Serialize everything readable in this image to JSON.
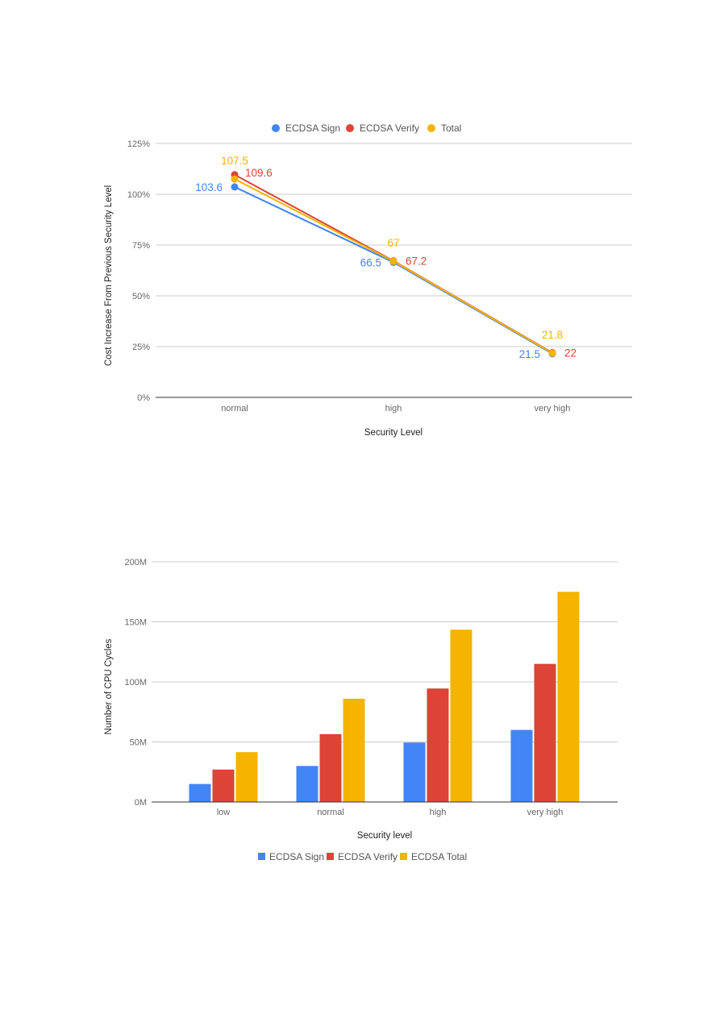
{
  "chart_data": [
    {
      "type": "line",
      "title": "",
      "xlabel": "Security Level",
      "ylabel": "Cost Increase From Previous Security Level",
      "categories": [
        "normal",
        "high",
        "very high"
      ],
      "ylim": [
        0,
        125
      ],
      "yticks": [
        "0%",
        "25%",
        "50%",
        "75%",
        "100%",
        "125%"
      ],
      "grid": true,
      "legend_position": "top",
      "series": [
        {
          "name": "ECDSA Sign",
          "color": "#4285f4",
          "values": [
            103.6,
            66.5,
            21.5
          ],
          "labels": [
            "103.6",
            "66.5",
            "21.5"
          ]
        },
        {
          "name": "ECDSA Verify",
          "color": "#db4437",
          "values": [
            109.6,
            67.2,
            22
          ],
          "labels": [
            "109.6",
            "67.2",
            "22"
          ]
        },
        {
          "name": "Total",
          "color": "#f4b400",
          "values": [
            107.5,
            67,
            21.8
          ],
          "labels": [
            "107.5",
            "67",
            "21.8"
          ]
        }
      ]
    },
    {
      "type": "bar",
      "title": "",
      "xlabel": "Security level",
      "ylabel": "Number of CPU Cycles",
      "categories": [
        "low",
        "normal",
        "high",
        "very high"
      ],
      "ylim": [
        0,
        200000000
      ],
      "yticks": [
        "0M",
        "50M",
        "100M",
        "150M",
        "200M"
      ],
      "grid": true,
      "legend_position": "bottom",
      "series": [
        {
          "name": "ECDSA Sign",
          "color": "#4285f4",
          "values": [
            15000000,
            30000000,
            49500000,
            60000000
          ]
        },
        {
          "name": "ECDSA Verify",
          "color": "#db4437",
          "values": [
            27000000,
            56500000,
            94500000,
            115000000
          ]
        },
        {
          "name": "ECDSA Total",
          "color": "#f4b400",
          "values": [
            41500000,
            86000000,
            143500000,
            175000000
          ]
        }
      ]
    }
  ]
}
